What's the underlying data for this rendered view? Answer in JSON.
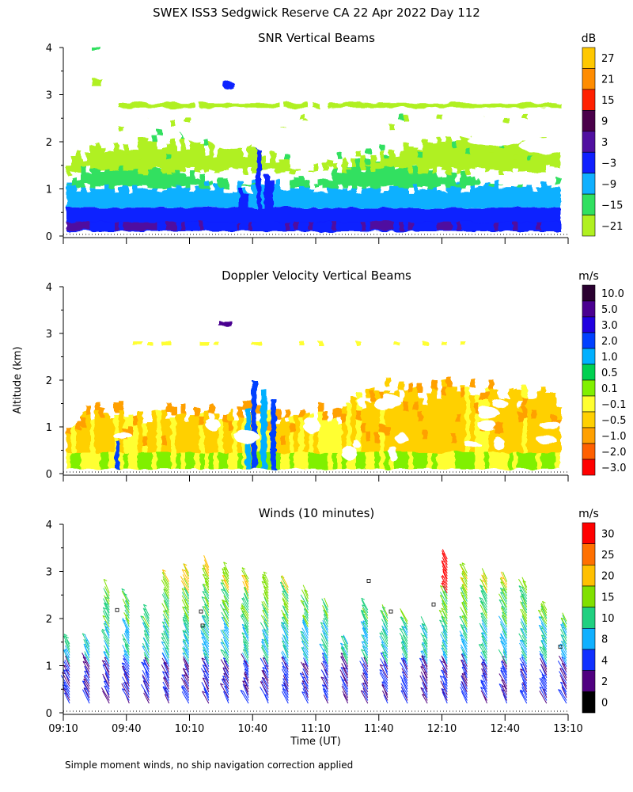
{
  "figure": {
    "title": "SWEX ISS3 Sedgwick Reserve CA  22 Apr 2022 Day 112",
    "ylabel": "Altitude (km)",
    "xlabel": "Time (UT)",
    "footnote": "Simple moment winds, no ship navigation correction applied"
  },
  "chart_data": [
    {
      "type": "heatmap",
      "title": "SNR Vertical Beams",
      "units": "dB",
      "x_range_ut": [
        "09:10",
        "13:10"
      ],
      "ylim": [
        0,
        4
      ],
      "yticks": [
        "0",
        "1",
        "2",
        "3",
        "4"
      ],
      "colorbar": {
        "labels": [
          "27",
          "21",
          "15",
          "9",
          "3",
          "−3",
          "−9",
          "−15",
          "−21"
        ],
        "colors": [
          "#ffc800",
          "#ff8c00",
          "#ff2000",
          "#4a004a",
          "#5010a0",
          "#1020ff",
          "#10b0ff",
          "#30e060",
          "#b0f020"
        ]
      },
      "description_bands_km": {
        "near_surface_db": 3,
        "mid_layer_db": -12,
        "upper_cloud_edge_km": 2.8
      }
    },
    {
      "type": "heatmap",
      "title": "Doppler Velocity Vertical Beams",
      "units": "m/s",
      "x_range_ut": [
        "09:10",
        "13:10"
      ],
      "ylim": [
        0,
        4
      ],
      "yticks": [
        "0",
        "1",
        "2",
        "3",
        "4"
      ],
      "colorbar": {
        "labels": [
          "10.0",
          "5.0",
          "3.0",
          "2.0",
          "1.0",
          "0.5",
          "0.1",
          "−0.1",
          "−0.5",
          "−1.0",
          "−2.0",
          "−3.0"
        ],
        "colors": [
          "#2a0030",
          "#4a0090",
          "#2000e0",
          "#0040ff",
          "#00b0ff",
          "#00d050",
          "#80f000",
          "#ffff30",
          "#ffd000",
          "#ffa000",
          "#ff6000",
          "#ff0000"
        ]
      }
    },
    {
      "type": "wind_barbs",
      "title": "Winds (10 minutes)",
      "units": "m/s",
      "ylim": [
        0,
        4
      ],
      "yticks": [
        "0",
        "1",
        "2",
        "3",
        "4"
      ],
      "xticks": [
        "09:10",
        "09:40",
        "10:10",
        "10:40",
        "11:10",
        "11:40",
        "12:10",
        "12:40",
        "13:10"
      ],
      "colorbar": {
        "labels": [
          "30",
          "25",
          "20",
          "15",
          "10",
          "8",
          "4",
          "2",
          "0"
        ],
        "colors": [
          "#ff0000",
          "#ff7000",
          "#ffc000",
          "#80e000",
          "#20d080",
          "#10b0ff",
          "#1030ff",
          "#500080",
          "#000000"
        ]
      },
      "profile_top_km": [
        1.5,
        1.5,
        2.6,
        2.4,
        2.1,
        2.8,
        3.0,
        3.1,
        3.0,
        2.9,
        2.8,
        2.7,
        2.5,
        2.3,
        1.5,
        2.2,
        2.1,
        2.0,
        1.8,
        3.3,
        3.0,
        2.9,
        2.8,
        2.7,
        2.2,
        2.0
      ]
    }
  ]
}
